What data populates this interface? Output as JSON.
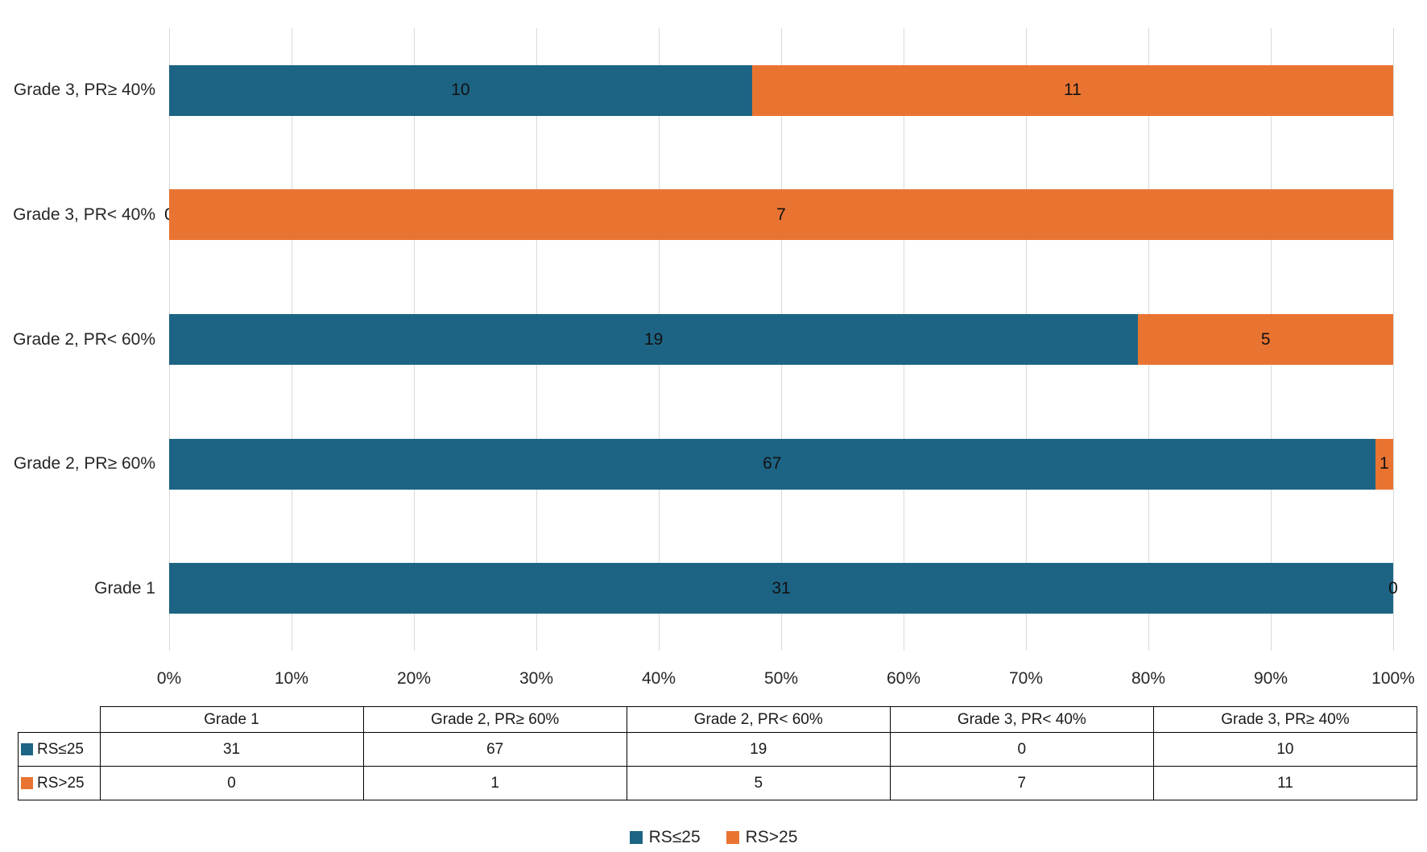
{
  "chart_data": {
    "type": "bar",
    "orientation": "horizontal",
    "stacked": true,
    "stack_mode": "percent",
    "title": "",
    "xlabel": "",
    "ylabel": "",
    "categories": [
      "Grade 1",
      "Grade 2, PR≥ 60%",
      "Grade 2, PR< 60%",
      "Grade 3, PR< 40%",
      "Grade 3, PR≥ 40%"
    ],
    "bar_order_top_to_bottom": [
      "Grade 3, PR≥ 40%",
      "Grade 3, PR< 40%",
      "Grade 2, PR< 60%",
      "Grade 2, PR≥ 60%",
      "Grade 1"
    ],
    "series": [
      {
        "name": "RS≤25",
        "color": "#1d6484",
        "values": [
          31,
          67,
          19,
          0,
          10
        ]
      },
      {
        "name": "RS>25",
        "color": "#e97432",
        "values": [
          0,
          1,
          5,
          7,
          11
        ]
      }
    ],
    "segment_percentages": {
      "RS≤25": [
        100,
        98.5,
        79.2,
        0,
        47.6
      ],
      "RS>25": [
        0,
        1.5,
        20.8,
        100,
        52.4
      ]
    },
    "x_axis": {
      "min": 0,
      "max": 100,
      "unit": "%",
      "ticks": [
        "0%",
        "10%",
        "20%",
        "30%",
        "40%",
        "50%",
        "60%",
        "70%",
        "80%",
        "90%",
        "100%"
      ]
    },
    "gridlines": true,
    "bar_value_labels_visible": true,
    "legend": {
      "position": "bottom",
      "entries": [
        "RS≤25",
        "RS>25"
      ]
    },
    "data_table": {
      "shown": true,
      "column_headers": [
        "Grade 1",
        "Grade 2, PR≥ 60%",
        "Grade 2, PR< 60%",
        "Grade 3, PR< 40%",
        "Grade 3, PR≥ 40%"
      ],
      "rows": [
        {
          "label": "RS≤25",
          "values": [
            31,
            67,
            19,
            0,
            10
          ]
        },
        {
          "label": "RS>25",
          "values": [
            0,
            1,
            5,
            7,
            11
          ]
        }
      ]
    }
  },
  "colors": {
    "series_blue": "#1d6484",
    "series_orange": "#e97432",
    "gridline": "#d9d9d9",
    "table_border": "#000000",
    "text": "#262626",
    "background": "#ffffff"
  }
}
